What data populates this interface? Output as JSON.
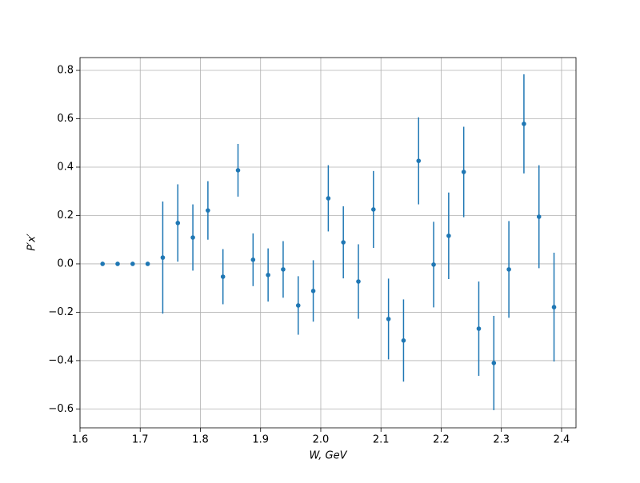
{
  "chart_data": {
    "type": "errorbar",
    "xlabel": "W, GeV",
    "ylabel": "P′x′",
    "color": "#1f77b4",
    "grid": true,
    "xlim": [
      1.6,
      2.424
    ],
    "ylim": [
      -0.678,
      0.853
    ],
    "xticks": [
      1.6,
      1.7,
      1.8,
      1.9,
      {
        "value": 2.0,
        "label": "2.0"
      },
      2.1,
      2.2,
      2.3,
      2.4
    ],
    "yticks": [
      {
        "value": -0.6,
        "label": "−0.6"
      },
      {
        "value": -0.4,
        "label": "−0.4"
      },
      {
        "value": -0.2,
        "label": "−0.2"
      },
      {
        "value": 0.0,
        "label": "0.0"
      },
      0.2,
      0.4,
      0.6,
      0.8
    ],
    "x": [
      1.6375,
      1.6625,
      1.6875,
      1.7125,
      1.7375,
      1.7625,
      1.7875,
      1.8125,
      1.8375,
      1.8625,
      1.8875,
      1.9125,
      1.9375,
      1.9625,
      1.9875,
      2.0125,
      2.0375,
      2.0625,
      2.0875,
      2.1125,
      2.1375,
      2.1625,
      2.1875,
      2.2125,
      2.2375,
      2.2625,
      2.2875,
      2.3125,
      2.3375,
      2.3625,
      2.3875
    ],
    "values": [
      0,
      0,
      0,
      0,
      0.026,
      0.169,
      0.109,
      0.221,
      -0.053,
      0.387,
      0.017,
      -0.046,
      -0.023,
      -0.172,
      -0.112,
      0.271,
      0.089,
      -0.073,
      0.225,
      -0.228,
      -0.317,
      0.426,
      -0.003,
      0.116,
      0.38,
      -0.268,
      -0.41,
      -0.023,
      0.579,
      0.195,
      -0.179
    ],
    "errors": [
      0,
      0,
      0,
      0,
      0.232,
      0.16,
      0.137,
      0.121,
      0.114,
      0.109,
      0.109,
      0.11,
      0.117,
      0.121,
      0.127,
      0.137,
      0.149,
      0.154,
      0.159,
      0.167,
      0.17,
      0.18,
      0.177,
      0.179,
      0.187,
      0.195,
      0.195,
      0.2,
      0.205,
      0.213,
      0.225
    ]
  }
}
